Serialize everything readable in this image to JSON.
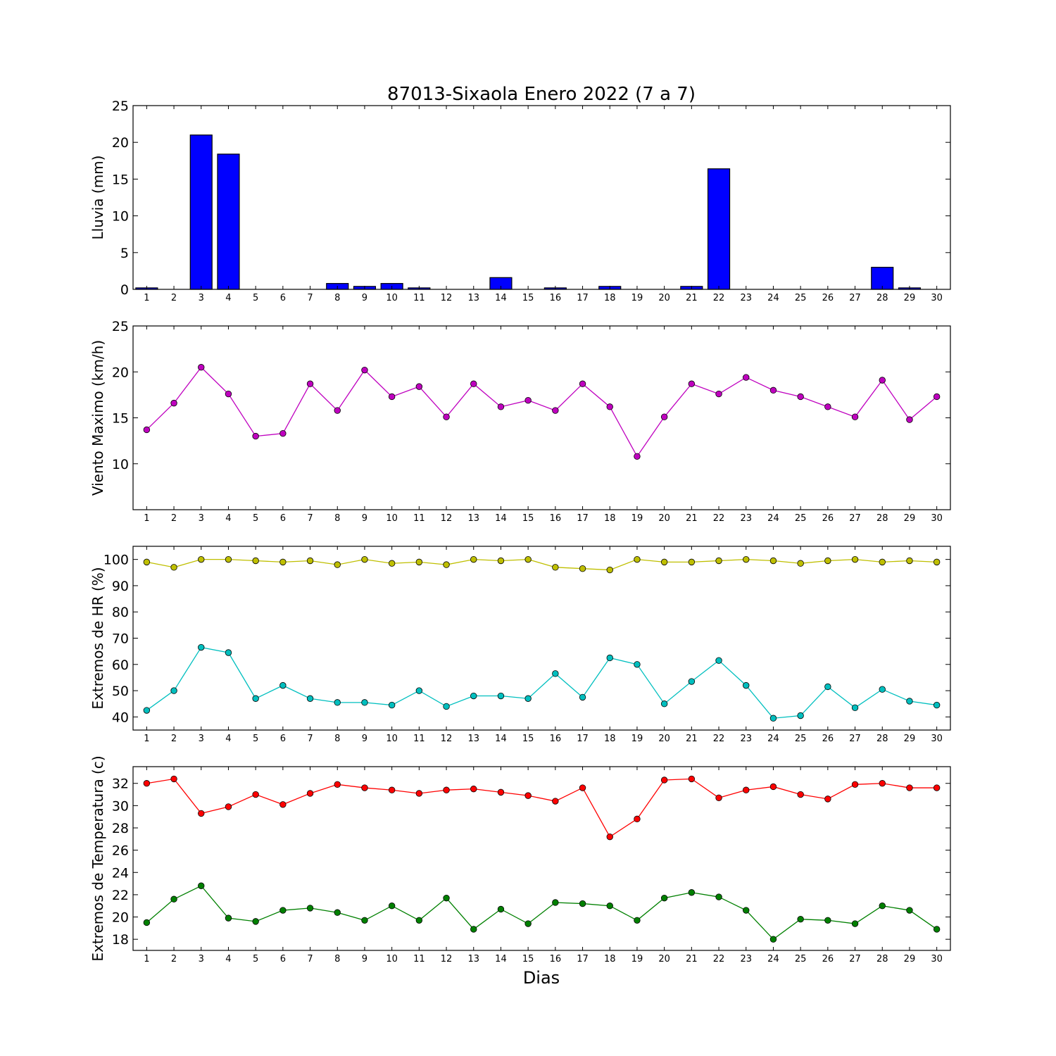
{
  "figure": {
    "title": "87013-Sixaola Enero 2022  (7 a 7)",
    "xlabel": "Dias"
  },
  "chart_data": [
    {
      "type": "bar",
      "ylabel": "Lluvia (mm)",
      "categories": [
        "1",
        "2",
        "3",
        "4",
        "5",
        "6",
        "7",
        "8",
        "9",
        "10",
        "11",
        "12",
        "13",
        "14",
        "15",
        "16",
        "17",
        "18",
        "19",
        "20",
        "21",
        "22",
        "23",
        "24",
        "25",
        "26",
        "27",
        "28",
        "29",
        "30"
      ],
      "values": [
        0.2,
        0,
        21.0,
        18.4,
        0,
        0,
        0,
        0.8,
        0.4,
        0.8,
        0.2,
        0,
        0,
        1.6,
        0,
        0.2,
        0,
        0.4,
        0,
        0,
        0.4,
        16.4,
        0,
        0,
        0,
        0,
        0,
        3.0,
        0.2,
        0
      ],
      "ylim": [
        0,
        25
      ],
      "yticks": [
        0,
        5,
        10,
        15,
        20,
        25
      ],
      "color": "#0000ff",
      "grid": false
    },
    {
      "type": "line",
      "ylabel": "Viento Maximo (km/h)",
      "categories": [
        "1",
        "2",
        "3",
        "4",
        "5",
        "6",
        "7",
        "8",
        "9",
        "10",
        "11",
        "12",
        "13",
        "14",
        "15",
        "16",
        "17",
        "18",
        "19",
        "20",
        "21",
        "22",
        "23",
        "24",
        "25",
        "26",
        "27",
        "28",
        "29",
        "30"
      ],
      "series": [
        {
          "values": [
            13.7,
            16.6,
            20.5,
            17.6,
            13.0,
            13.3,
            18.7,
            15.8,
            20.2,
            17.3,
            18.4,
            15.1,
            18.7,
            16.2,
            16.9,
            15.8,
            18.7,
            16.2,
            10.8,
            15.1,
            18.7,
            17.6,
            19.4,
            18.0,
            17.3,
            16.2,
            15.1,
            19.1,
            14.8,
            17.3
          ],
          "color": "#bf00bf"
        }
      ],
      "ylim": [
        5,
        25
      ],
      "yticks": [
        10,
        15,
        20,
        25
      ],
      "grid": false
    },
    {
      "type": "line",
      "ylabel": "Extremos de HR (%)",
      "categories": [
        "1",
        "2",
        "3",
        "4",
        "5",
        "6",
        "7",
        "8",
        "9",
        "10",
        "11",
        "12",
        "13",
        "14",
        "15",
        "16",
        "17",
        "18",
        "19",
        "20",
        "21",
        "22",
        "23",
        "24",
        "25",
        "26",
        "27",
        "28",
        "29",
        "30"
      ],
      "series": [
        {
          "values": [
            99,
            97,
            100,
            100,
            99.5,
            99,
            99.5,
            98,
            100,
            98.5,
            99,
            98,
            100,
            99.5,
            100,
            97,
            96.5,
            96,
            100,
            99,
            99,
            99.5,
            100,
            99.5,
            98.5,
            99.5,
            100,
            99,
            99.5,
            99
          ],
          "color": "#bfbf00"
        },
        {
          "values": [
            42.5,
            50,
            66.5,
            64.5,
            47,
            52,
            47,
            45.5,
            45.5,
            44.5,
            50,
            44,
            48,
            48,
            47,
            56.5,
            47.5,
            62.5,
            60,
            45,
            53.5,
            61.5,
            52,
            39.5,
            40.5,
            51.5,
            43.5,
            50.5,
            46,
            44.5
          ],
          "color": "#00bfbf"
        }
      ],
      "ylim": [
        35,
        105
      ],
      "yticks": [
        40,
        50,
        60,
        70,
        80,
        90,
        100
      ],
      "grid": false
    },
    {
      "type": "line",
      "ylabel": "Extremos de Temperatura (c)",
      "categories": [
        "1",
        "2",
        "3",
        "4",
        "5",
        "6",
        "7",
        "8",
        "9",
        "10",
        "11",
        "12",
        "13",
        "14",
        "15",
        "16",
        "17",
        "18",
        "19",
        "20",
        "21",
        "22",
        "23",
        "24",
        "25",
        "26",
        "27",
        "28",
        "29",
        "30"
      ],
      "series": [
        {
          "values": [
            32.0,
            32.4,
            29.3,
            29.9,
            31.0,
            30.1,
            31.1,
            31.9,
            31.6,
            31.4,
            31.1,
            31.4,
            31.5,
            31.2,
            30.9,
            30.4,
            31.6,
            27.2,
            28.8,
            32.3,
            32.4,
            30.7,
            31.4,
            31.7,
            31.0,
            30.6,
            31.9,
            32.0,
            31.6,
            31.6
          ],
          "color": "#ff0000"
        },
        {
          "values": [
            19.5,
            21.6,
            22.8,
            19.9,
            19.6,
            20.6,
            20.8,
            20.4,
            19.7,
            21.0,
            19.7,
            21.7,
            18.9,
            20.7,
            19.4,
            21.3,
            21.2,
            21.0,
            19.7,
            21.7,
            22.2,
            21.8,
            20.6,
            18.0,
            19.8,
            19.7,
            19.4,
            21.0,
            20.6,
            18.9
          ],
          "color": "#008000"
        }
      ],
      "ylim": [
        17,
        33.5
      ],
      "yticks": [
        18,
        20,
        22,
        24,
        26,
        28,
        30,
        32
      ],
      "grid": false
    }
  ]
}
